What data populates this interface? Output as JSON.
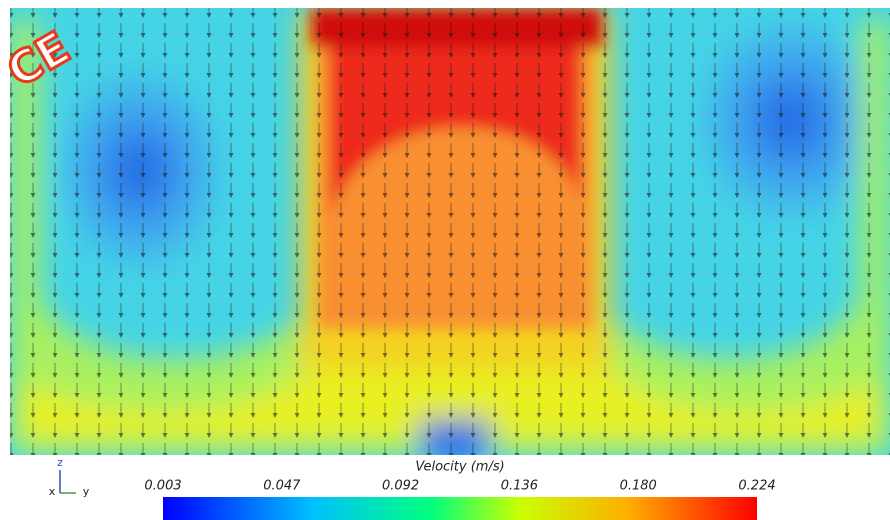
{
  "logo": "CE",
  "colorbar": {
    "title": "Velocity (m/s)",
    "labels": [
      "0.003",
      "0.047",
      "0.092",
      "0.136",
      "0.180",
      "0.224"
    ]
  },
  "axes_triad": {
    "z": "z",
    "x": "x",
    "y": "y"
  }
}
